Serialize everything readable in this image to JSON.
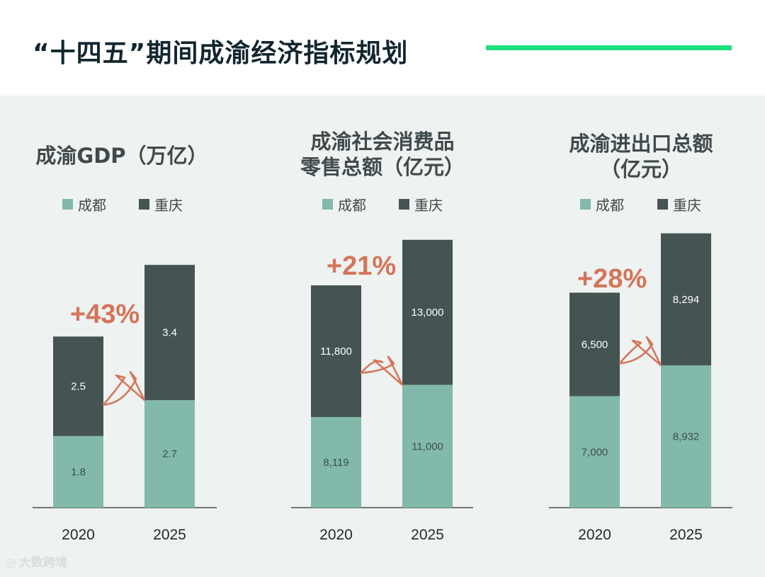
{
  "header": {
    "title": "“十四五”期间成渝经济指标规划"
  },
  "colors": {
    "chengdu": "#82b9aa",
    "chongqing": "#455453",
    "accent_line": "#1ee07f",
    "growth": "#d4745a"
  },
  "watermark": {
    "text": "大数跨境",
    "icon": "logo-icon"
  },
  "chart_data": [
    {
      "type": "bar",
      "stacked": true,
      "title_lines": [
        "成渝GDP（万亿）"
      ],
      "categories": [
        "2020",
        "2025"
      ],
      "series": [
        {
          "name": "成都",
          "values": [
            1.8,
            2.7
          ],
          "labels": [
            "1.8",
            "2.7"
          ]
        },
        {
          "name": "重庆",
          "values": [
            2.5,
            3.4
          ],
          "labels": [
            "2.5",
            "3.4"
          ]
        }
      ],
      "growth_label": "+43%",
      "legend": "top-left"
    },
    {
      "type": "bar",
      "stacked": true,
      "title_lines": [
        "成渝社会消费品",
        "零售总额（亿元）"
      ],
      "categories": [
        "2020",
        "2025"
      ],
      "series": [
        {
          "name": "成都",
          "values": [
            8119,
            11000
          ],
          "labels": [
            "8,119",
            "11,000"
          ]
        },
        {
          "name": "重庆",
          "values": [
            11800,
            13000
          ],
          "labels": [
            "11,800",
            "13,000"
          ]
        }
      ],
      "growth_label": "+21%",
      "legend": "top-left"
    },
    {
      "type": "bar",
      "stacked": true,
      "title_lines": [
        "成渝进出口总额",
        "（亿元）"
      ],
      "categories": [
        "2020",
        "2025"
      ],
      "series": [
        {
          "name": "成都",
          "values": [
            7000,
            8932
          ],
          "labels": [
            "7,000",
            "8,932"
          ]
        },
        {
          "name": "重庆",
          "values": [
            6500,
            8294
          ],
          "labels": [
            "6,500",
            "8,294"
          ]
        }
      ],
      "growth_label": "+28%",
      "legend": "top-left"
    }
  ]
}
